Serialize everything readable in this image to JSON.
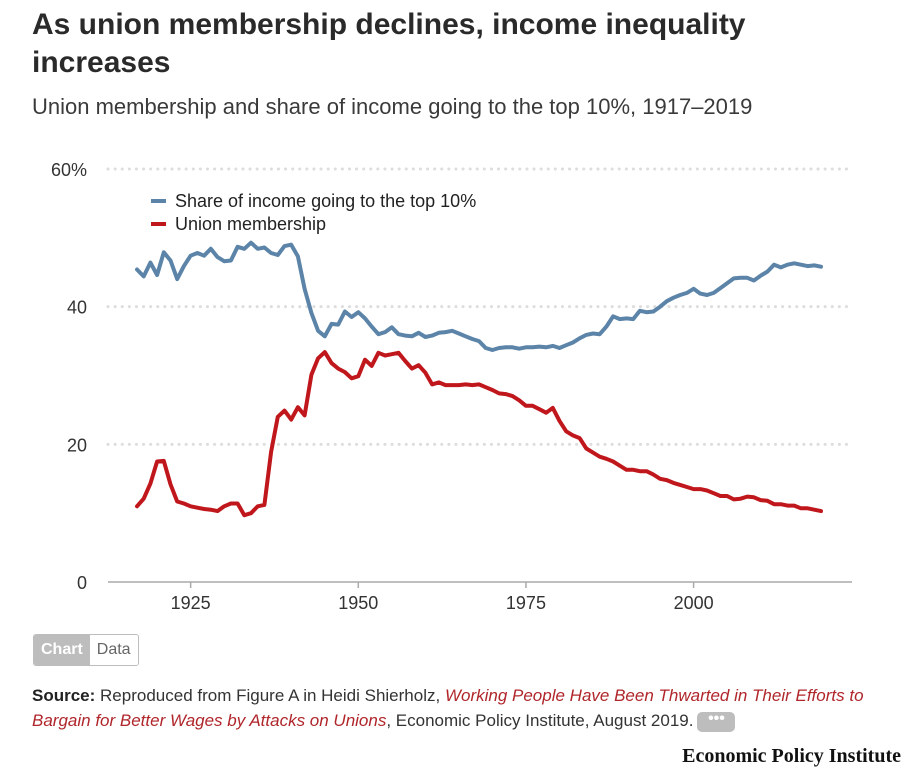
{
  "header": {
    "title": "As union membership declines, income inequality increases",
    "subtitle": "Union membership and share of income going to the top 10%, 1917–2019"
  },
  "toggle": {
    "chart_label": "Chart",
    "data_label": "Data"
  },
  "source": {
    "label": "Source:",
    "text_before": "Reproduced from Figure A in Heidi Shierholz, ",
    "link_text": "Working People Have Been Thwarted in Their Efforts to Bargain for Better Wages by Attacks on Unions",
    "text_after": ", Economic Policy Institute, August 2019.",
    "more_label": "•••"
  },
  "brand": "Economic Policy Institute",
  "colors": {
    "top10": "#5b84a8",
    "union": "#c0171c",
    "grid": "#dddddd",
    "axis": "#aaaaaa"
  },
  "chart_data": {
    "type": "line",
    "xlim": [
      1917,
      2019
    ],
    "ylim": [
      0,
      60
    ],
    "x_ticks": [
      1925,
      1950,
      1975,
      2000
    ],
    "x_tick_labels": [
      "1925",
      "1950",
      "1975",
      "2000"
    ],
    "y_ticks": [
      0,
      20,
      40,
      60
    ],
    "y_tick_labels": [
      "0",
      "20",
      "40",
      "60%"
    ],
    "grid": "horizontal dotted",
    "legend_position": "top-left",
    "series": [
      {
        "name": "Share of income going to the top 10%",
        "color": "#5b84a8",
        "x": [
          1917,
          1918,
          1919,
          1920,
          1921,
          1922,
          1923,
          1924,
          1925,
          1926,
          1927,
          1928,
          1929,
          1930,
          1931,
          1932,
          1933,
          1934,
          1935,
          1936,
          1937,
          1938,
          1939,
          1940,
          1941,
          1942,
          1943,
          1944,
          1945,
          1946,
          1947,
          1948,
          1949,
          1950,
          1951,
          1952,
          1953,
          1954,
          1955,
          1956,
          1957,
          1958,
          1959,
          1960,
          1961,
          1962,
          1963,
          1964,
          1965,
          1966,
          1967,
          1968,
          1969,
          1970,
          1971,
          1972,
          1973,
          1974,
          1975,
          1976,
          1977,
          1978,
          1979,
          1980,
          1981,
          1982,
          1983,
          1984,
          1985,
          1986,
          1987,
          1988,
          1989,
          1990,
          1991,
          1992,
          1993,
          1994,
          1995,
          1996,
          1997,
          1998,
          1999,
          2000,
          2001,
          2002,
          2003,
          2004,
          2005,
          2006,
          2007,
          2008,
          2009,
          2010,
          2011,
          2012,
          2013,
          2014,
          2015,
          2016,
          2017,
          2018,
          2019
        ],
        "y": [
          45.4,
          44.4,
          46.4,
          44.6,
          47.9,
          46.7,
          44.0,
          45.9,
          47.4,
          47.8,
          47.4,
          48.4,
          47.2,
          46.6,
          46.7,
          48.7,
          48.4,
          49.3,
          48.4,
          48.6,
          47.8,
          47.5,
          48.8,
          49.0,
          47.3,
          42.6,
          39.1,
          36.5,
          35.7,
          37.5,
          37.4,
          39.3,
          38.5,
          39.2,
          38.3,
          37.1,
          36.0,
          36.3,
          37.0,
          36.0,
          35.8,
          35.7,
          36.2,
          35.6,
          35.8,
          36.2,
          36.3,
          36.5,
          36.1,
          35.7,
          35.3,
          35.0,
          34.0,
          33.7,
          34.0,
          34.1,
          34.1,
          33.9,
          34.1,
          34.1,
          34.2,
          34.1,
          34.3,
          34.0,
          34.4,
          34.8,
          35.4,
          35.9,
          36.1,
          36.0,
          37.1,
          38.6,
          38.2,
          38.3,
          38.2,
          39.4,
          39.2,
          39.3,
          40.0,
          40.8,
          41.3,
          41.7,
          42.0,
          42.6,
          41.9,
          41.7,
          42.0,
          42.7,
          43.4,
          44.1,
          44.2,
          44.2,
          43.8,
          44.5,
          45.1,
          46.1,
          45.7,
          46.1,
          46.3,
          46.1,
          45.9,
          46.0,
          45.8
        ]
      },
      {
        "name": "Union membership",
        "color": "#c0171c",
        "x": [
          1917,
          1918,
          1919,
          1920,
          1921,
          1922,
          1923,
          1924,
          1925,
          1926,
          1927,
          1928,
          1929,
          1930,
          1931,
          1932,
          1933,
          1934,
          1935,
          1936,
          1937,
          1938,
          1939,
          1940,
          1941,
          1942,
          1943,
          1944,
          1945,
          1946,
          1947,
          1948,
          1949,
          1950,
          1951,
          1952,
          1953,
          1954,
          1955,
          1956,
          1957,
          1958,
          1959,
          1960,
          1961,
          1962,
          1963,
          1964,
          1965,
          1966,
          1967,
          1968,
          1969,
          1970,
          1971,
          1972,
          1973,
          1974,
          1975,
          1976,
          1977,
          1978,
          1979,
          1980,
          1981,
          1982,
          1983,
          1984,
          1985,
          1986,
          1987,
          1988,
          1989,
          1990,
          1991,
          1992,
          1993,
          1994,
          1995,
          1996,
          1997,
          1998,
          1999,
          2000,
          2001,
          2002,
          2003,
          2004,
          2005,
          2006,
          2007,
          2008,
          2009,
          2010,
          2011,
          2012,
          2013,
          2014,
          2015,
          2016,
          2017,
          2018,
          2019
        ],
        "y": [
          11.0,
          12.1,
          14.3,
          17.5,
          17.6,
          14.2,
          11.7,
          11.4,
          11.0,
          10.8,
          10.6,
          10.5,
          10.3,
          11.0,
          11.4,
          11.4,
          9.7,
          10.0,
          11.0,
          11.2,
          18.9,
          24.0,
          24.9,
          23.6,
          25.4,
          24.2,
          30.1,
          32.5,
          33.4,
          31.8,
          31.0,
          30.5,
          29.6,
          29.9,
          32.3,
          31.4,
          33.3,
          32.9,
          33.1,
          33.3,
          32.1,
          31.0,
          31.5,
          30.4,
          28.7,
          29.0,
          28.6,
          28.6,
          28.6,
          28.7,
          28.6,
          28.7,
          28.3,
          27.9,
          27.4,
          27.3,
          27.0,
          26.4,
          25.6,
          25.6,
          25.1,
          24.6,
          25.3,
          23.4,
          21.9,
          21.3,
          20.9,
          19.4,
          18.8,
          18.2,
          17.9,
          17.5,
          16.9,
          16.3,
          16.3,
          16.1,
          16.1,
          15.6,
          15.0,
          14.8,
          14.4,
          14.1,
          13.8,
          13.5,
          13.5,
          13.3,
          12.9,
          12.5,
          12.5,
          12.0,
          12.1,
          12.4,
          12.3,
          11.9,
          11.8,
          11.3,
          11.3,
          11.1,
          11.1,
          10.7,
          10.7,
          10.5,
          10.3
        ]
      }
    ]
  }
}
